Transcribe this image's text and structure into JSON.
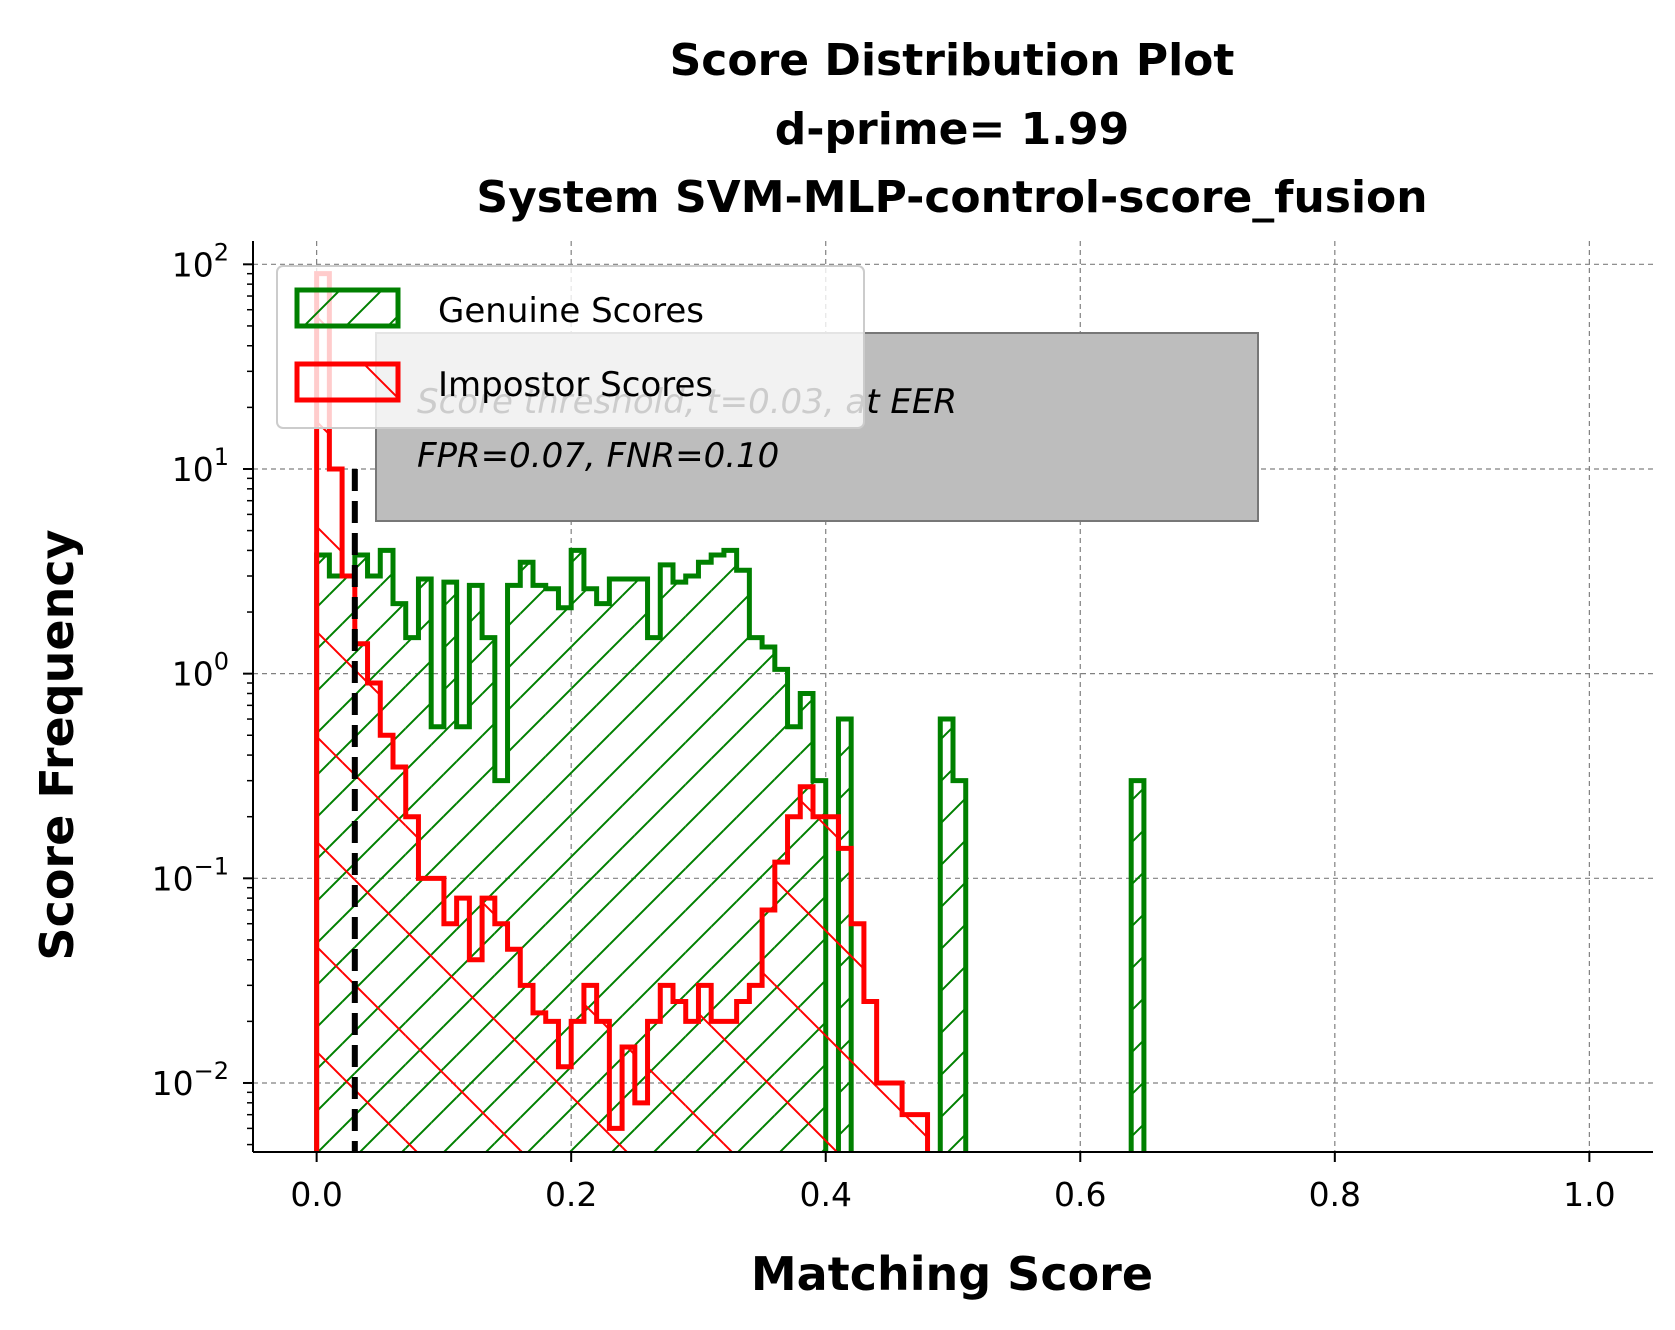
{
  "chart_data": {
    "type": "histogram",
    "title": [
      "Score Distribution Plot",
      "d-prime= 1.99",
      "System SVM-MLP-control-score_fusion"
    ],
    "xlabel": "Matching Score",
    "ylabel": "Score Frequency",
    "xlim": [
      -0.05,
      1.05
    ],
    "ylim": [
      0.0046,
      130
    ],
    "yscale": "log",
    "grid": true,
    "xticks": [
      0.0,
      0.2,
      0.4,
      0.6,
      0.8,
      1.0
    ],
    "xtick_labels": [
      "0.0",
      "0.2",
      "0.4",
      "0.6",
      "0.8",
      "1.0"
    ],
    "yticks": [
      {
        "value": 100,
        "base": "10",
        "exp": "2"
      },
      {
        "value": 10,
        "base": "10",
        "exp": "1"
      },
      {
        "value": 1,
        "base": "10",
        "exp": "0"
      },
      {
        "value": 0.1,
        "base": "10",
        "exp": "−1"
      },
      {
        "value": 0.01,
        "base": "10",
        "exp": "−2"
      }
    ],
    "bin_width": 0.01,
    "series": [
      {
        "name": "Genuine Scores",
        "color": "#008000",
        "hatch": "/",
        "bins_start": 0.0,
        "values": [
          3.8,
          3.0,
          3.0,
          3.8,
          3.0,
          4.0,
          2.2,
          1.5,
          2.9,
          0.55,
          2.8,
          0.55,
          2.7,
          1.5,
          0.3,
          2.7,
          3.5,
          2.7,
          2.6,
          2.1,
          4.0,
          2.6,
          2.2,
          2.9,
          2.9,
          2.9,
          1.5,
          3.4,
          2.8,
          3.0,
          3.5,
          3.8,
          4.0,
          3.2,
          1.5,
          1.35,
          1.05,
          0.55,
          0.8,
          0.3,
          0.0,
          0.6,
          0.0,
          0.0,
          0.0,
          0.0,
          0.0,
          0.0,
          0.0,
          0.6,
          0.3,
          0.0,
          0.0,
          0.0,
          0.0,
          0.0,
          0.0,
          0.0,
          0.0,
          0.0,
          0.0,
          0.0,
          0.0,
          0.0,
          0.3
        ]
      },
      {
        "name": "Impostor Scores",
        "color": "#ff0000",
        "hatch": "\\",
        "bins_start": 0.0,
        "values": [
          90,
          10,
          3.0,
          1.4,
          0.9,
          0.5,
          0.35,
          0.2,
          0.1,
          0.1,
          0.06,
          0.08,
          0.04,
          0.08,
          0.06,
          0.045,
          0.03,
          0.022,
          0.02,
          0.012,
          0.02,
          0.03,
          0.02,
          0.006,
          0.015,
          0.008,
          0.02,
          0.03,
          0.025,
          0.02,
          0.03,
          0.02,
          0.02,
          0.025,
          0.03,
          0.07,
          0.12,
          0.2,
          0.28,
          0.2,
          0.2,
          0.14,
          0.06,
          0.025,
          0.01,
          0.01,
          0.007,
          0.007
        ]
      }
    ],
    "threshold": 0.03,
    "legend": {
      "position": "upper-left",
      "entries": [
        "Genuine Scores",
        "Impostor Scores"
      ]
    },
    "annotation": [
      "Score threshold, t=0.03, at EER",
      "FPR=0.07, FNR=0.10"
    ]
  }
}
